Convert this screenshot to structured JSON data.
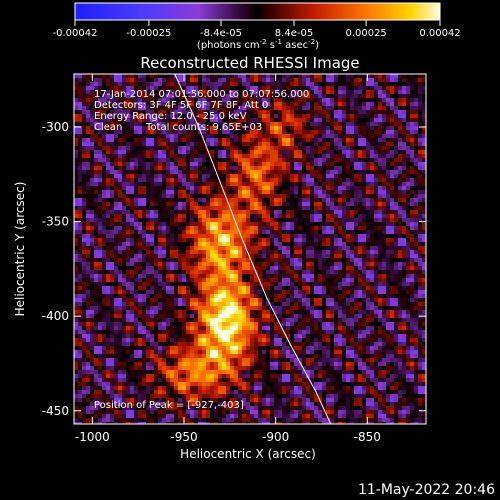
{
  "colorbar": {
    "ticks": [
      {
        "label": "-0.00042",
        "value": -0.00042
      },
      {
        "label": "-0.00025",
        "value": -0.00025
      },
      {
        "label": "-8.4e-05",
        "value": -8.4e-05
      },
      {
        "label": "8.4e-05",
        "value": 8.4e-05
      },
      {
        "label": "0.00025",
        "value": 0.00025
      },
      {
        "label": "0.00042",
        "value": 0.00042
      }
    ],
    "range": [
      -0.00042,
      0.00042
    ],
    "unit_prefix": "(photons cm",
    "unit_sup1": "-2",
    "unit_mid1": " s",
    "unit_sup2": "-1",
    "unit_mid2": " asec",
    "unit_sup3": "-2",
    "unit_suffix": ")"
  },
  "chart_data": {
    "type": "heatmap",
    "title": "Reconstructed RHESSI Image",
    "xlabel": "Heliocentric X (arcsec)",
    "ylabel": "Heliocentric Y (arcsec)",
    "xlim": [
      -1010,
      -818
    ],
    "ylim": [
      -457,
      -272
    ],
    "x_ticks": [
      {
        "label": "-1000",
        "value": -1000
      },
      {
        "label": "-950",
        "value": -950
      },
      {
        "label": "-900",
        "value": -900
      },
      {
        "label": "-850",
        "value": -850
      }
    ],
    "y_ticks": [
      {
        "label": "-300",
        "value": -300
      },
      {
        "label": "-350",
        "value": -350
      },
      {
        "label": "-400",
        "value": -400
      },
      {
        "label": "-450",
        "value": -450
      }
    ],
    "colormap_range": [
      -0.00042,
      0.00042
    ],
    "peak": {
      "x": -927,
      "y": -403
    },
    "sources": [
      {
        "x": -927,
        "y": -403,
        "sx": 11,
        "sy": 16,
        "amp": 1.0
      },
      {
        "x": -930,
        "y": -360,
        "sx": 12,
        "sy": 15,
        "amp": 0.72
      },
      {
        "x": -910,
        "y": -325,
        "sx": 10,
        "sy": 14,
        "amp": 0.5
      },
      {
        "x": -945,
        "y": -430,
        "sx": 14,
        "sy": 10,
        "amp": 0.55
      },
      {
        "x": -895,
        "y": -300,
        "sx": 9,
        "sy": 10,
        "amp": 0.35
      }
    ],
    "limb": [
      [
        -955,
        -272
      ],
      [
        -942,
        -300
      ],
      [
        -930,
        -330
      ],
      [
        -918,
        -360
      ],
      [
        -905,
        -390
      ],
      [
        -892,
        -415
      ],
      [
        -878,
        -440
      ],
      [
        -870,
        -457
      ]
    ],
    "grid": false,
    "annotations": {
      "time_range": "17-Jan-2014 07:01:56.000 to 07:07:56.000",
      "detectors": "Detectors: 3F 4F 5F 6F 7F 8F, Att 0",
      "energy": "Energy Range: 12.0 - 25.0 keV",
      "method": "Clean",
      "total_counts": "Total counts: 9.65E+03",
      "peak_position": "Position of Peak = [-927,-403]"
    }
  },
  "footer": {
    "date": "11-May-2022 20:46"
  }
}
